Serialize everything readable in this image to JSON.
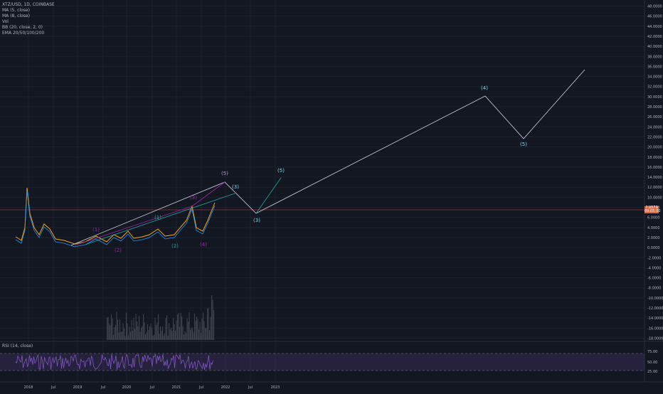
{
  "legend": {
    "symbol": "XTZ/USD, 1D, COINBASE",
    "lines": [
      "MA (5, close)",
      "MA (8, close)",
      "Vol",
      "BB (20, close, 2, 0)",
      "EMA 20/50/100/200"
    ]
  },
  "rsi_label": "RSI (14, close)",
  "current_price": {
    "line1": "7.0579",
    "line2": "09:05:00"
  },
  "chart_data": {
    "type": "line",
    "price_axis": [
      "48.0000",
      "46.0000",
      "44.0000",
      "42.0000",
      "40.0000",
      "38.0000",
      "36.0000",
      "34.0000",
      "32.0000",
      "30.0000",
      "28.0000",
      "26.0000",
      "24.0000",
      "22.0000",
      "20.0000",
      "18.0000",
      "16.0000",
      "14.0000",
      "12.0000",
      "10.0000",
      "8.0000",
      "6.0000",
      "4.0000",
      "2.0000",
      "0.0000",
      "-2.0000",
      "-4.0000",
      "-6.0000",
      "-8.0000",
      "-10.0000",
      "-12.0000",
      "-14.0000",
      "-16.0000",
      "-18.0000"
    ],
    "rsi_axis": [
      "75.00",
      "50.00",
      "25.00"
    ],
    "time_axis": [
      "2018",
      "Jul",
      "2019",
      "Jul",
      "2020",
      "Jul",
      "2021",
      "Jul",
      "2022",
      "Jul",
      "2023"
    ],
    "wave_labels": [
      {
        "text": "(1)",
        "color": "#9c27b0"
      },
      {
        "text": "(2)",
        "color": "#9c27b0"
      },
      {
        "text": "(3)",
        "color": "#9c27b0"
      },
      {
        "text": "(4)",
        "color": "#9c27b0"
      },
      {
        "text": "(1)",
        "color": "#26a69a"
      },
      {
        "text": "(2)",
        "color": "#26a69a"
      },
      {
        "text": "(5)",
        "color": "#b39ddb"
      },
      {
        "text": "(3)",
        "color": "#80deea"
      },
      {
        "text": "(5)",
        "color": "#80deea"
      },
      {
        "text": "(3)",
        "color": "#80deea"
      },
      {
        "text": "(4)",
        "color": "#80deea"
      },
      {
        "text": "(5)",
        "color": "#80deea"
      }
    ],
    "colors": {
      "background": "#131722",
      "rsi": "#7e57c2",
      "price_line": "#f23645",
      "volume": "#5d606b"
    }
  }
}
